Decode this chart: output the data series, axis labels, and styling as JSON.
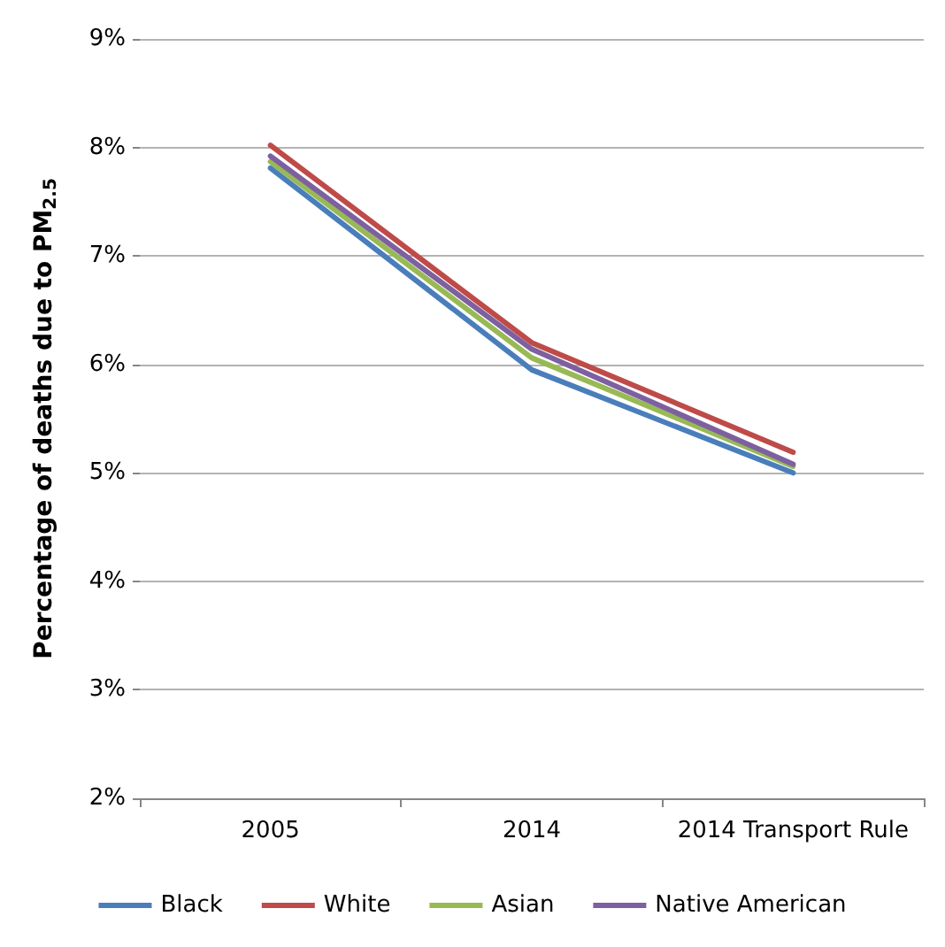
{
  "chart_data": {
    "type": "line",
    "ylabel": "Percentage of deaths due to PM$_{2.5}$",
    "categories": [
      "2005",
      "2014",
      "2014 Transport Rule"
    ],
    "series": [
      {
        "name": "Black",
        "color": "#4a7ebb",
        "values": [
          7.81,
          5.95,
          5.0
        ]
      },
      {
        "name": "White",
        "color": "#be4b48",
        "values": [
          8.02,
          6.2,
          5.19
        ]
      },
      {
        "name": "Asian",
        "color": "#98b954",
        "values": [
          7.87,
          6.06,
          5.06
        ]
      },
      {
        "name": "Native American",
        "color": "#7d60a0",
        "values": [
          7.92,
          6.14,
          5.08
        ]
      }
    ],
    "ylim": [
      2,
      9
    ],
    "yticks": [
      {
        "value": 2,
        "label": "2%"
      },
      {
        "value": 3,
        "label": "3%"
      },
      {
        "value": 4,
        "label": "4%"
      },
      {
        "value": 5,
        "label": "5%"
      },
      {
        "value": 6,
        "label": "6%"
      },
      {
        "value": 7,
        "label": "7%"
      },
      {
        "value": 8,
        "label": "8%"
      },
      {
        "value": 9,
        "label": "9%"
      }
    ],
    "grid": "y",
    "legend": "bottom",
    "marker": "none",
    "line_style": "solid"
  }
}
